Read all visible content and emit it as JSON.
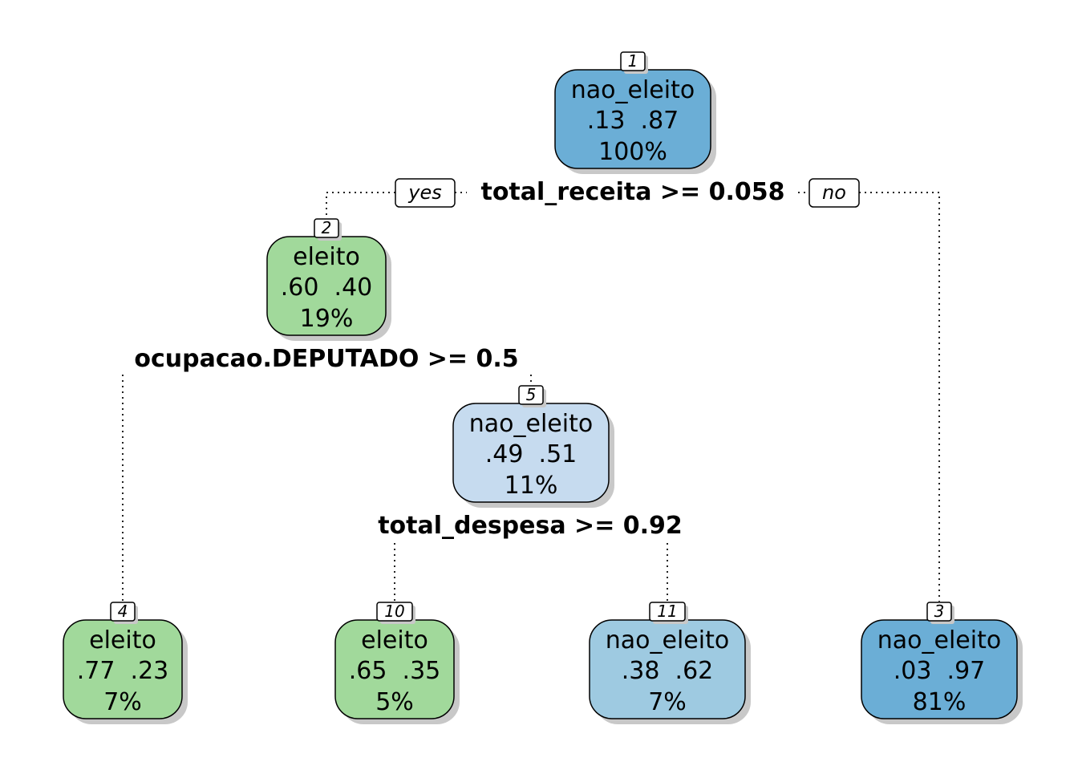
{
  "colors": {
    "eleito": "#a1d99b",
    "nao_eleito_strong": "#6baed6",
    "nao_eleito_mid": "#9ecae1",
    "nao_eleito_light": "#c6dbef",
    "border": "#000000",
    "shadow": "#c8c8c8"
  },
  "edge_labels": {
    "yes": "yes",
    "no": "no"
  },
  "nodes": [
    {
      "id": "1",
      "class_label": "nao_eleito",
      "probs": ".13  .87",
      "percent": "100%",
      "color": "#6baed6"
    },
    {
      "id": "2",
      "class_label": "eleito",
      "probs": ".60  .40",
      "percent": "19%",
      "color": "#a1d99b"
    },
    {
      "id": "5",
      "class_label": "nao_eleito",
      "probs": ".49  .51",
      "percent": "11%",
      "color": "#c6dbef"
    },
    {
      "id": "4",
      "class_label": "eleito",
      "probs": ".77  .23",
      "percent": "7%",
      "color": "#a1d99b"
    },
    {
      "id": "10",
      "class_label": "eleito",
      "probs": ".65  .35",
      "percent": "5%",
      "color": "#a1d99b"
    },
    {
      "id": "11",
      "class_label": "nao_eleito",
      "probs": ".38  .62",
      "percent": "7%",
      "color": "#9ecae1"
    },
    {
      "id": "3",
      "class_label": "nao_eleito",
      "probs": ".03  .97",
      "percent": "81%",
      "color": "#6baed6"
    }
  ],
  "splits": [
    {
      "node": "1",
      "rule": "total_receita >= 0.058"
    },
    {
      "node": "2",
      "rule": "ocupacao.DEPUTADO >= 0.5"
    },
    {
      "node": "5",
      "rule": "total_despesa >= 0.92"
    }
  ]
}
